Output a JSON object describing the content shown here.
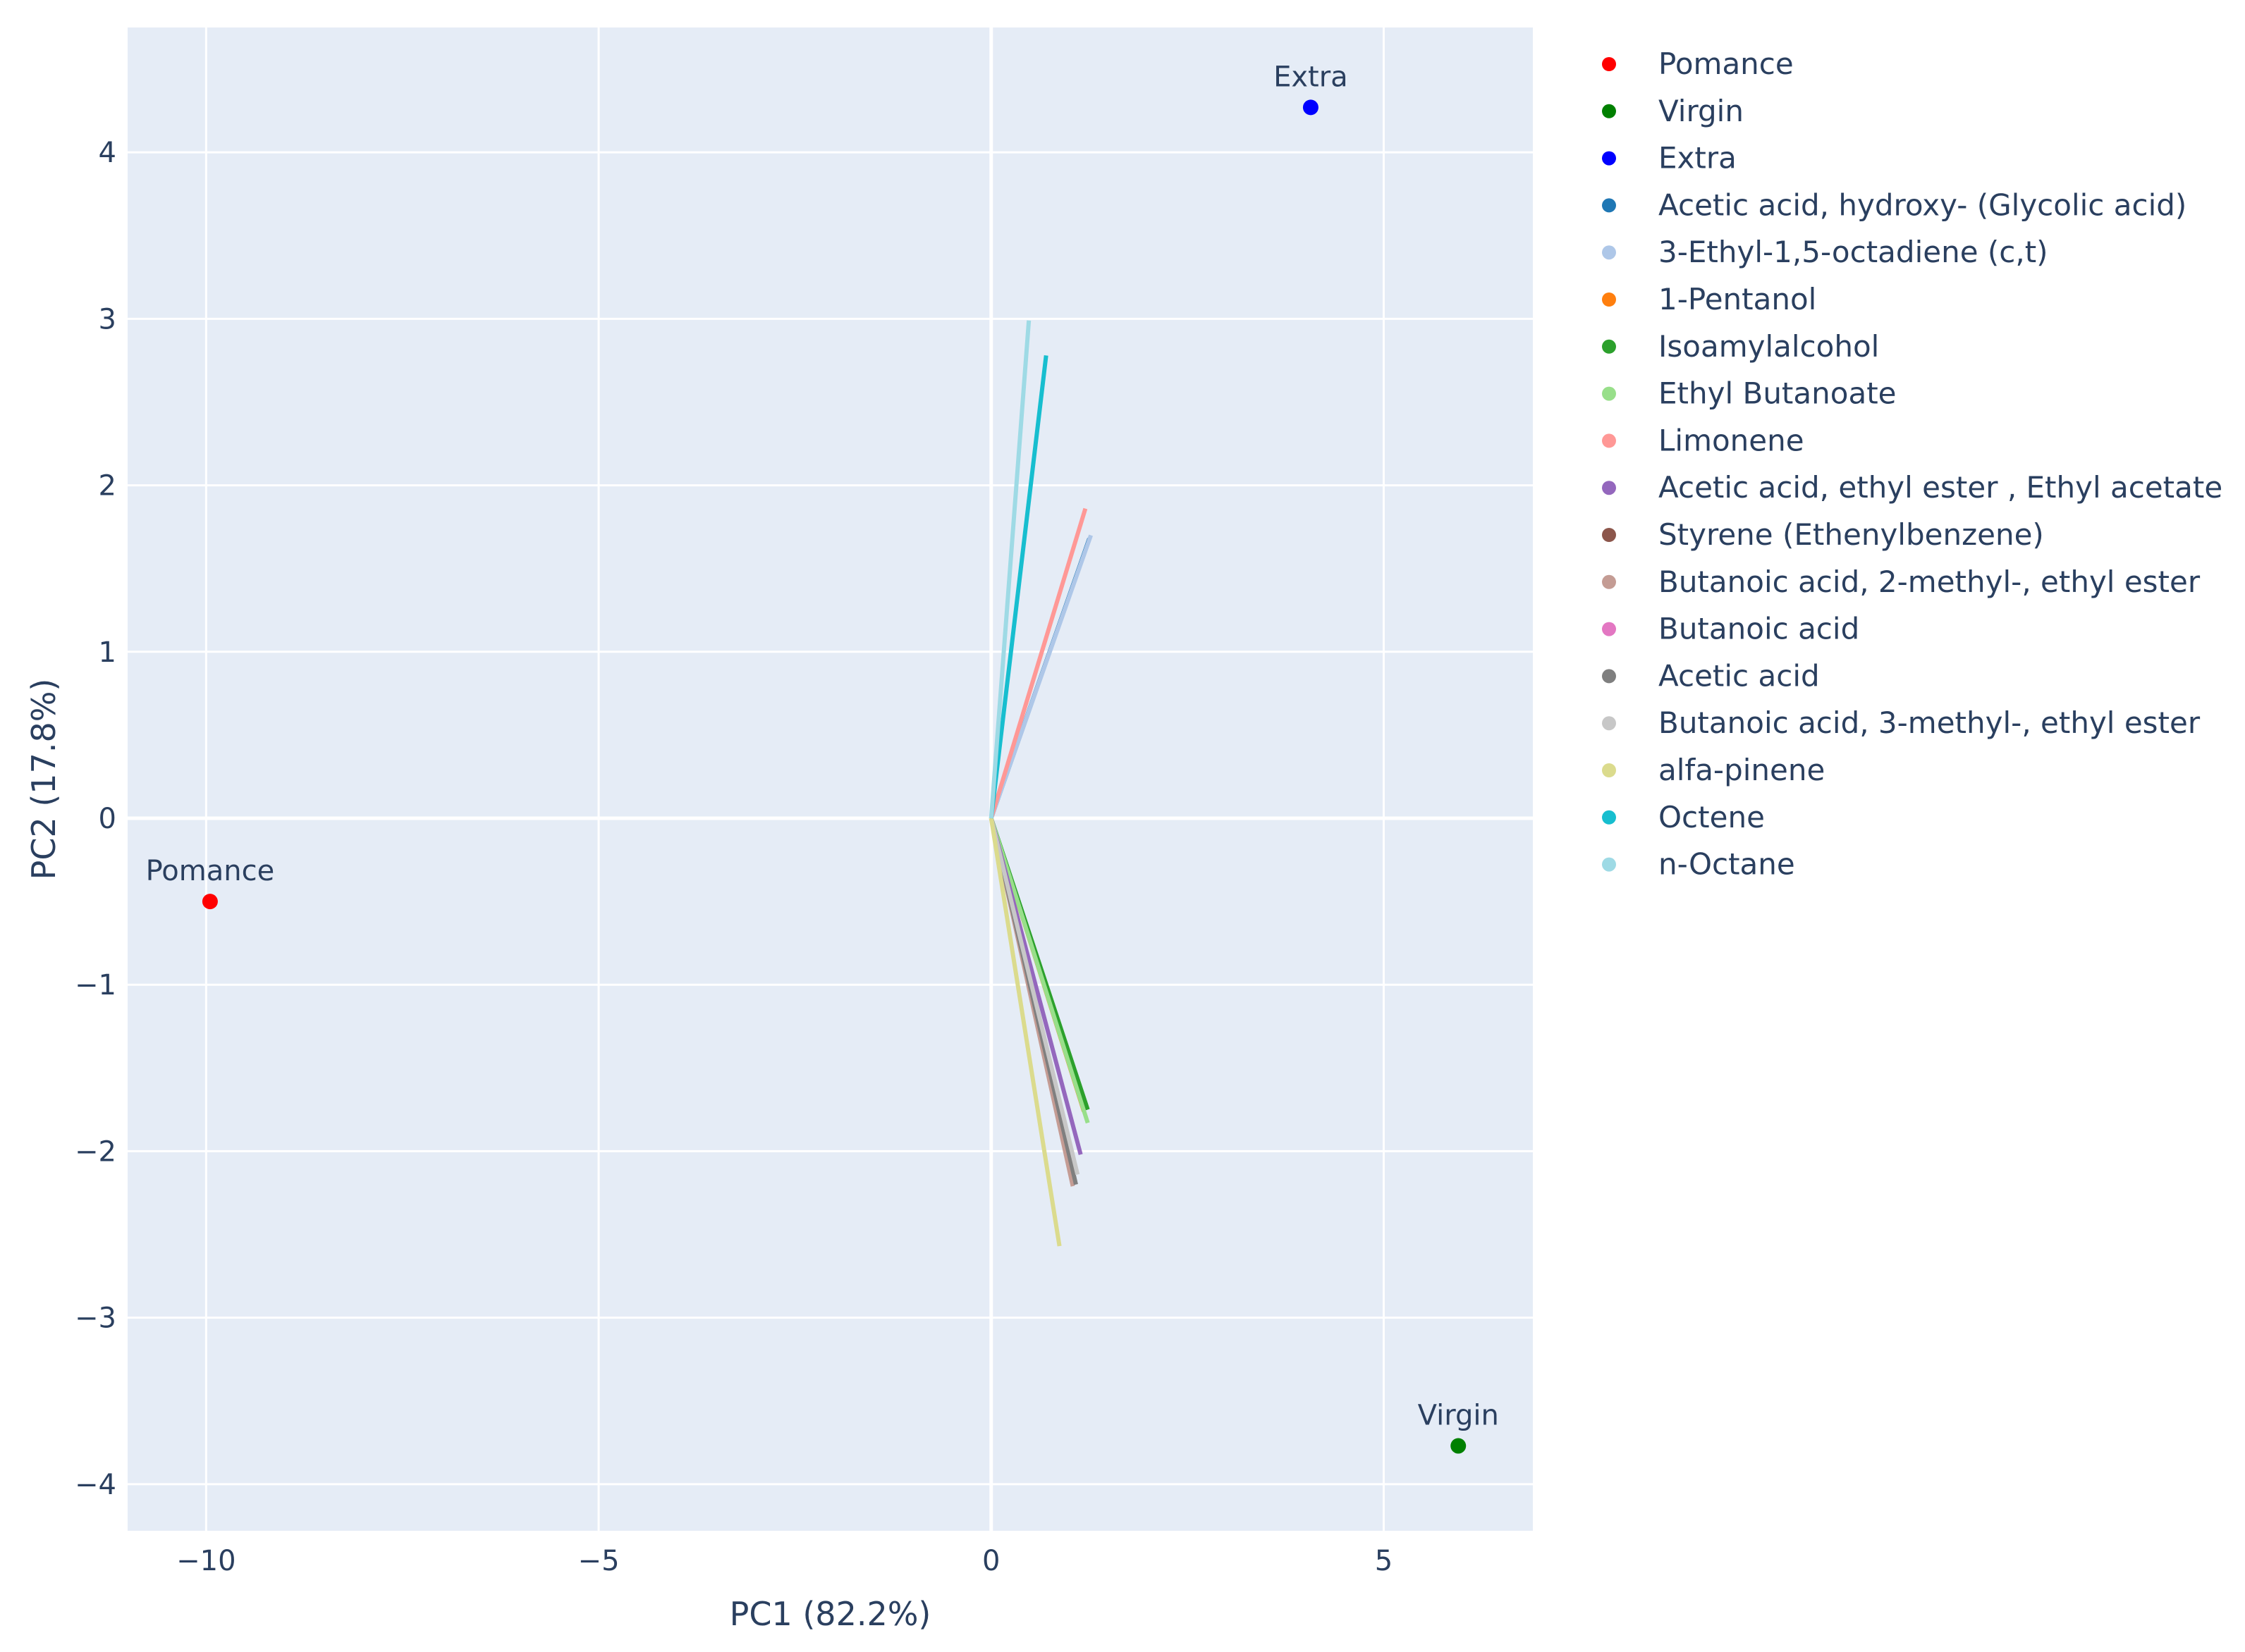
{
  "chart_data": {
    "type": "scatter",
    "title": "",
    "xlabel": "PC1 (82.2%)",
    "ylabel": "PC2 (17.8%)",
    "xlim": [
      -11,
      6.9
    ],
    "ylim": [
      -4.28,
      4.75
    ],
    "xticks": [
      -10,
      -5,
      0,
      5
    ],
    "xtick_labels": [
      "−10",
      "−5",
      "0",
      "5"
    ],
    "yticks": [
      -4,
      -3,
      -2,
      -1,
      0,
      1,
      2,
      3,
      4
    ],
    "ytick_labels": [
      "−4",
      "−3",
      "−2",
      "−1",
      "0",
      "1",
      "2",
      "3",
      "4"
    ],
    "grid": true,
    "legend_position": "right",
    "background": "#e5ecf6",
    "points": [
      {
        "name": "Pomance",
        "x": -9.95,
        "y": -0.5,
        "color": "#ff0000",
        "label": "Pomance"
      },
      {
        "name": "Virgin",
        "x": 5.95,
        "y": -3.77,
        "color": "#008000",
        "label": "Virgin"
      },
      {
        "name": "Extra",
        "x": 4.07,
        "y": 4.27,
        "color": "#0000ff",
        "label": "Extra"
      }
    ],
    "loadings": [
      {
        "name": "Acetic acid, hydroxy-  (Glycolic acid)",
        "x": 1.25,
        "y": 1.68,
        "color": "#1f77b4"
      },
      {
        "name": "3-Ethyl-1,5-octadiene (c,t)",
        "x": 1.27,
        "y": 1.7,
        "color": "#aec7e8"
      },
      {
        "name": "1-Pentanol",
        "x": 1.18,
        "y": -1.76,
        "color": "#ff7f0e"
      },
      {
        "name": "Isoamylalcohol",
        "x": 1.23,
        "y": -1.75,
        "color": "#2ca02c"
      },
      {
        "name": "Ethyl Butanoate",
        "x": 1.23,
        "y": -1.83,
        "color": "#98df8a"
      },
      {
        "name": "Limonene",
        "x": 1.2,
        "y": 1.86,
        "color": "#ff9896"
      },
      {
        "name": "Acetic acid, ethyl ester , Ethyl acetate",
        "x": 1.14,
        "y": -2.02,
        "color": "#9467bd"
      },
      {
        "name": "Styrene (Ethenylbenzene)",
        "x": 1.06,
        "y": -2.17,
        "color": "#8c564b"
      },
      {
        "name": "Butanoic acid, 2-methyl-, ethyl ester",
        "x": 1.04,
        "y": -2.21,
        "color": "#c49c94"
      },
      {
        "name": "Butanoic acid",
        "x": 1.07,
        "y": -2.12,
        "color": "#e377c2"
      },
      {
        "name": "Acetic acid",
        "x": 1.08,
        "y": -2.2,
        "color": "#7f7f7f"
      },
      {
        "name": "Butanoic acid, 3-methyl-, ethyl ester",
        "x": 1.1,
        "y": -2.14,
        "color": "#c7c7c7"
      },
      {
        "name": "alfa-pinene",
        "x": 0.87,
        "y": -2.57,
        "color": "#dbdb8d"
      },
      {
        "name": "Octene",
        "x": 0.7,
        "y": 2.78,
        "color": "#17becf"
      },
      {
        "name": " n-Octane",
        "x": 0.48,
        "y": 2.99,
        "color": "#9edae5"
      }
    ],
    "legend": [
      {
        "label": "Pomance",
        "color": "#ff0000"
      },
      {
        "label": "Virgin",
        "color": "#008000"
      },
      {
        "label": "Extra",
        "color": "#0000ff"
      },
      {
        "label": "Acetic acid, hydroxy-  (Glycolic acid)",
        "color": "#1f77b4"
      },
      {
        "label": "3-Ethyl-1,5-octadiene (c,t)",
        "color": "#aec7e8"
      },
      {
        "label": "1-Pentanol",
        "color": "#ff7f0e"
      },
      {
        "label": "Isoamylalcohol",
        "color": "#2ca02c"
      },
      {
        "label": "Ethyl Butanoate",
        "color": "#98df8a"
      },
      {
        "label": "Limonene",
        "color": "#ff9896"
      },
      {
        "label": "Acetic acid, ethyl ester , Ethyl acetate",
        "color": "#9467bd"
      },
      {
        "label": "Styrene (Ethenylbenzene)",
        "color": "#8c564b"
      },
      {
        "label": "Butanoic acid, 2-methyl-, ethyl ester",
        "color": "#c49c94"
      },
      {
        "label": "Butanoic acid",
        "color": "#e377c2"
      },
      {
        "label": "Acetic acid",
        "color": "#7f7f7f"
      },
      {
        "label": "Butanoic acid, 3-methyl-, ethyl ester",
        "color": "#c7c7c7"
      },
      {
        "label": "alfa-pinene",
        "color": "#dbdb8d"
      },
      {
        "label": "Octene",
        "color": "#17becf"
      },
      {
        "label": " n-Octane",
        "color": "#9edae5"
      }
    ]
  }
}
